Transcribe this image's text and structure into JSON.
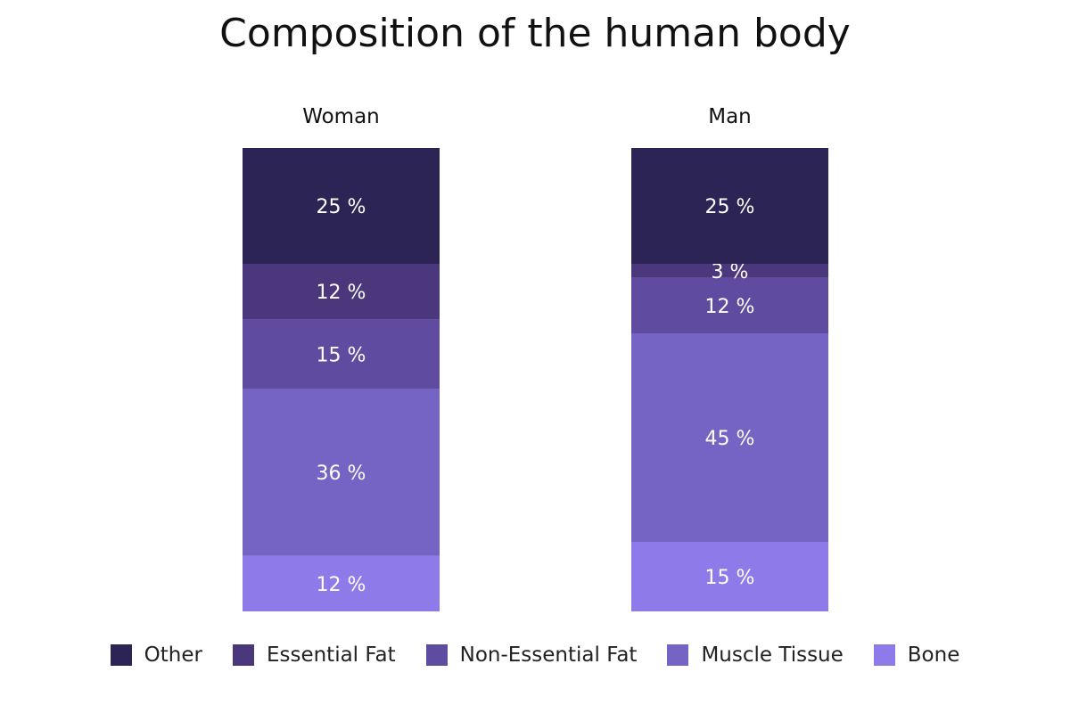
{
  "chart_data": {
    "type": "bar",
    "stacked": true,
    "title": "Composition of the human body",
    "categories": [
      "Woman",
      "Man"
    ],
    "series": [
      {
        "name": "Bone",
        "values": [
          12,
          15
        ],
        "labels": [
          "12 %",
          "15 %"
        ],
        "color": "#8f7aea"
      },
      {
        "name": "Muscle Tissue",
        "values": [
          36,
          45
        ],
        "labels": [
          "36 %",
          "45 %"
        ],
        "color": "#7664c4"
      },
      {
        "name": "Non-Essential Fat",
        "values": [
          15,
          12
        ],
        "labels": [
          "15 %",
          "12 %"
        ],
        "color": "#5f4ca1"
      },
      {
        "name": "Essential Fat",
        "values": [
          12,
          3
        ],
        "labels": [
          "12 %",
          "3 %"
        ],
        "color": "#4b377b"
      },
      {
        "name": "Other",
        "values": [
          25,
          25
        ],
        "labels": [
          "25 %",
          "25 %"
        ],
        "color": "#2c2455"
      }
    ],
    "legend": {
      "position": "bottom",
      "order": [
        "Other",
        "Essential Fat",
        "Non-Essential Fat",
        "Muscle Tissue",
        "Bone"
      ]
    },
    "ylim": [
      0,
      100
    ],
    "grid": false
  }
}
